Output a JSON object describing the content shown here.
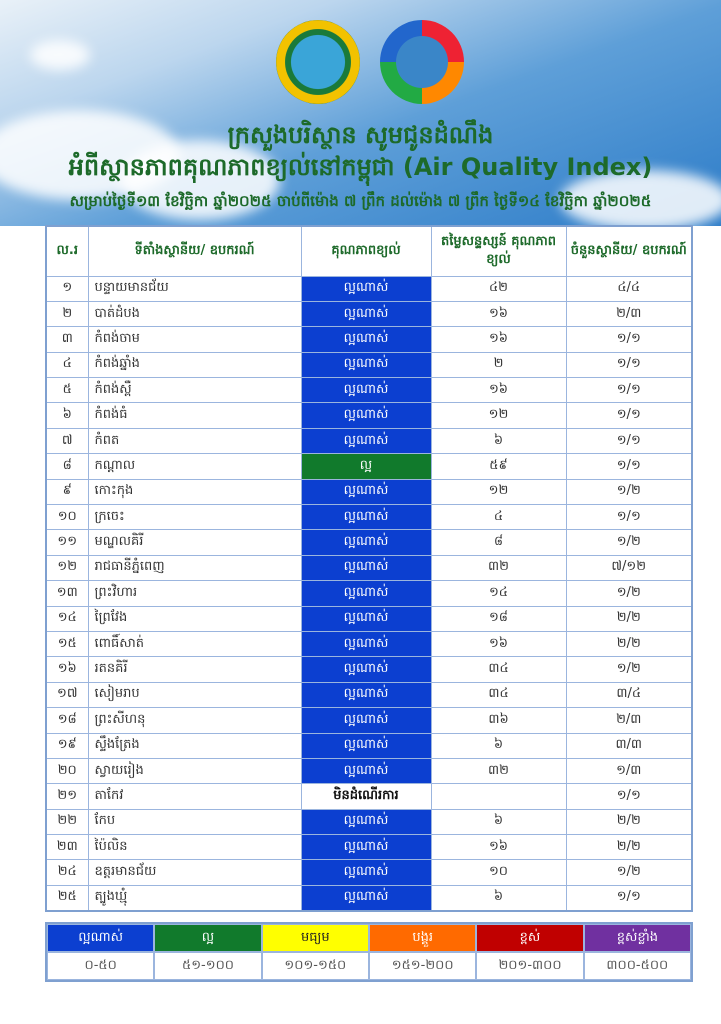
{
  "header": {
    "title_line1": "ក្រសួងបរិស្ថាន សូមជូនដំណឹង",
    "title_line2": "អំពីស្ថានភាពគុណភាពខ្យល់នៅកម្ពុជា (Air Quality Index)",
    "subtitle": "សម្រាប់ថ្ងៃទី១៣ ខែវិច្ឆិកា ឆ្នាំ២០២៥ ចាប់ពីម៉ោង ៧ ព្រឹក ដល់ម៉ោង ៧ ព្រឹក ថ្ងៃទី១៤ ខែវិច្ឆិកា ឆ្នាំ២០២៥"
  },
  "table": {
    "columns": [
      "ល.រ",
      "ទីតាំងស្ថានីយ/ ឧបករណ៍",
      "គុណភាពខ្យល់",
      "តម្លៃសន្ទស្សន៍ គុណភាពខ្យល់",
      "ចំនួនស្ថានីយ/ ឧបករណ៍"
    ],
    "rows": [
      {
        "no": "១",
        "name": "បន្ទាយមានជ័យ",
        "quality": "ល្អណាស់",
        "level": "very-good",
        "aqi": "៤២",
        "stations": "៤/៤"
      },
      {
        "no": "២",
        "name": "បាត់ដំបង",
        "quality": "ល្អណាស់",
        "level": "very-good",
        "aqi": "១៦",
        "stations": "២/៣"
      },
      {
        "no": "៣",
        "name": "កំពង់ចាម",
        "quality": "ល្អណាស់",
        "level": "very-good",
        "aqi": "១៦",
        "stations": "១/១"
      },
      {
        "no": "៤",
        "name": "កំពង់ឆ្នាំង",
        "quality": "ល្អណាស់",
        "level": "very-good",
        "aqi": "២",
        "stations": "១/១"
      },
      {
        "no": "៥",
        "name": "កំពង់ស្ពឺ",
        "quality": "ល្អណាស់",
        "level": "very-good",
        "aqi": "១៦",
        "stations": "១/១"
      },
      {
        "no": "៦",
        "name": "កំពង់ធំ",
        "quality": "ល្អណាស់",
        "level": "very-good",
        "aqi": "១២",
        "stations": "១/១"
      },
      {
        "no": "៧",
        "name": "កំពត",
        "quality": "ល្អណាស់",
        "level": "very-good",
        "aqi": "៦",
        "stations": "១/១"
      },
      {
        "no": "៨",
        "name": "កណ្ដាល",
        "quality": "ល្អ",
        "level": "good",
        "aqi": "៥៩",
        "stations": "១/១"
      },
      {
        "no": "៩",
        "name": "កោះកុង",
        "quality": "ល្អណាស់",
        "level": "very-good",
        "aqi": "១២",
        "stations": "១/២"
      },
      {
        "no": "១០",
        "name": "ក្រចេះ",
        "quality": "ល្អណាស់",
        "level": "very-good",
        "aqi": "៤",
        "stations": "១/១"
      },
      {
        "no": "១១",
        "name": "មណ្ឌលគិរី",
        "quality": "ល្អណាស់",
        "level": "very-good",
        "aqi": "៨",
        "stations": "១/២"
      },
      {
        "no": "១២",
        "name": "រាជធានីភ្នំពេញ",
        "quality": "ល្អណាស់",
        "level": "very-good",
        "aqi": "៣២",
        "stations": "៧/១២"
      },
      {
        "no": "១៣",
        "name": "ព្រះវិហារ",
        "quality": "ល្អណាស់",
        "level": "very-good",
        "aqi": "១៤",
        "stations": "១/២"
      },
      {
        "no": "១៤",
        "name": "ព្រៃវែង",
        "quality": "ល្អណាស់",
        "level": "very-good",
        "aqi": "១៨",
        "stations": "២/២"
      },
      {
        "no": "១៥",
        "name": "ពោធិ៍សាត់",
        "quality": "ល្អណាស់",
        "level": "very-good",
        "aqi": "១៦",
        "stations": "២/២"
      },
      {
        "no": "១៦",
        "name": "រតនគិរី",
        "quality": "ល្អណាស់",
        "level": "very-good",
        "aqi": "៣៤",
        "stations": "១/២"
      },
      {
        "no": "១៧",
        "name": "សៀមរាប",
        "quality": "ល្អណាស់",
        "level": "very-good",
        "aqi": "៣៤",
        "stations": "៣/៤"
      },
      {
        "no": "១៨",
        "name": "ព្រះសីហនុ",
        "quality": "ល្អណាស់",
        "level": "very-good",
        "aqi": "៣៦",
        "stations": "២/៣"
      },
      {
        "no": "១៩",
        "name": "ស្ទឹងត្រែង",
        "quality": "ល្អណាស់",
        "level": "very-good",
        "aqi": "៦",
        "stations": "៣/៣"
      },
      {
        "no": "២០",
        "name": "ស្វាយរៀង",
        "quality": "ល្អណាស់",
        "level": "very-good",
        "aqi": "៣២",
        "stations": "១/៣"
      },
      {
        "no": "២១",
        "name": "តាកែវ",
        "quality": "មិនដំណើរការ",
        "level": "not-operating",
        "aqi": "",
        "stations": "១/១"
      },
      {
        "no": "២២",
        "name": "កែប",
        "quality": "ល្អណាស់",
        "level": "very-good",
        "aqi": "៦",
        "stations": "២/២"
      },
      {
        "no": "២៣",
        "name": "ប៉ៃលិន",
        "quality": "ល្អណាស់",
        "level": "very-good",
        "aqi": "១៦",
        "stations": "២/២"
      },
      {
        "no": "២៤",
        "name": "ឧត្តរមានជ័យ",
        "quality": "ល្អណាស់",
        "level": "very-good",
        "aqi": "១០",
        "stations": "១/២"
      },
      {
        "no": "២៥",
        "name": "ត្បូងឃ្មុំ",
        "quality": "ល្អណាស់",
        "level": "very-good",
        "aqi": "៦",
        "stations": "១/១"
      }
    ]
  },
  "legend": [
    {
      "label": "ល្អណាស់",
      "range": "០-៥០",
      "color": "#0c3fd0",
      "text_color": "#ffffff"
    },
    {
      "label": "ល្អ",
      "range": "៥១-១០០",
      "color": "#117a2c",
      "text_color": "#ffffff"
    },
    {
      "label": "មធ្យម",
      "range": "១០១-១៥០",
      "color": "#ffff00",
      "text_color": "#222222"
    },
    {
      "label": "បង្គួរ",
      "range": "១៥១-២០០",
      "color": "#ff6a00",
      "text_color": "#ffffff"
    },
    {
      "label": "ខ្ពស់",
      "range": "២០១-៣០០",
      "color": "#c00000",
      "text_color": "#ffffff"
    },
    {
      "label": "ខ្ពស់ខ្លាំង",
      "range": "៣០០-៥០០",
      "color": "#7030a0",
      "text_color": "#ffffff"
    }
  ]
}
